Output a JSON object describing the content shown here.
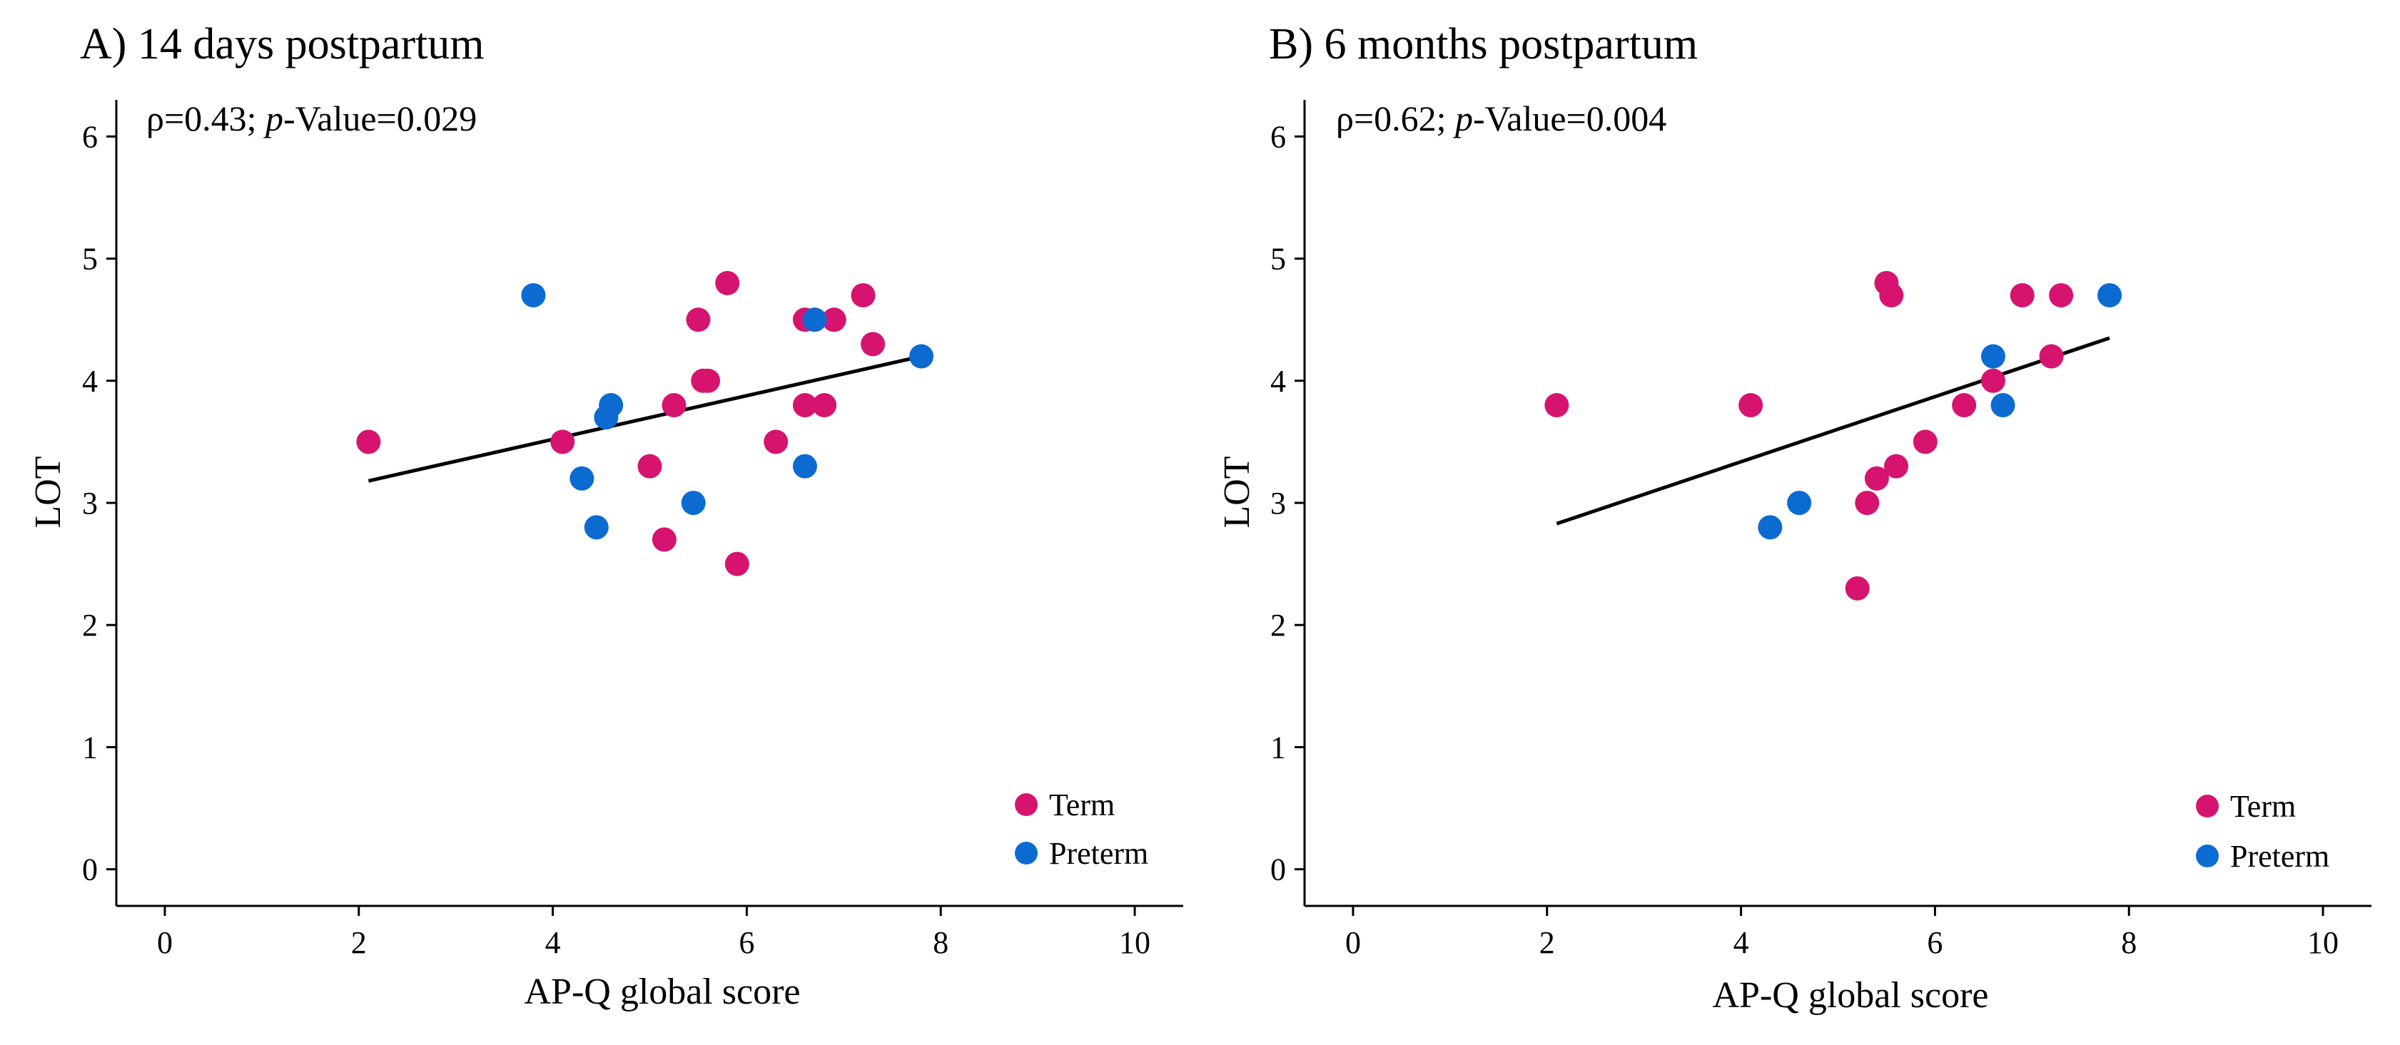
{
  "chart_data": [
    {
      "type": "scatter",
      "title": "A) 14 days postpartum",
      "annotation": {
        "prefix": "ρ=0.43; ",
        "p": "p",
        "mid": "-Value",
        "value": "=0.029"
      },
      "xlabel": "AP-Q global score",
      "ylabel": "LOT",
      "xlim": [
        -0.5,
        10.5
      ],
      "ylim": [
        -0.3,
        6.3
      ],
      "xticks": [
        0,
        2,
        4,
        6,
        8,
        10
      ],
      "yticks": [
        0,
        1,
        2,
        3,
        4,
        5,
        6
      ],
      "grid": false,
      "legend_position": "bottom-right",
      "fit_line": {
        "x": [
          2.1,
          7.8
        ],
        "y": [
          3.18,
          4.2
        ]
      },
      "series": [
        {
          "name": "Term",
          "color": "#D6136F",
          "points": [
            {
              "x": 2.1,
              "y": 3.5
            },
            {
              "x": 4.1,
              "y": 3.5
            },
            {
              "x": 5.0,
              "y": 3.3
            },
            {
              "x": 5.15,
              "y": 2.7
            },
            {
              "x": 5.25,
              "y": 3.8
            },
            {
              "x": 5.5,
              "y": 4.5
            },
            {
              "x": 5.55,
              "y": 4.0
            },
            {
              "x": 5.6,
              "y": 4.0
            },
            {
              "x": 5.8,
              "y": 4.8
            },
            {
              "x": 5.9,
              "y": 2.5
            },
            {
              "x": 6.3,
              "y": 3.5
            },
            {
              "x": 6.6,
              "y": 3.8
            },
            {
              "x": 6.6,
              "y": 4.5
            },
            {
              "x": 6.8,
              "y": 3.8
            },
            {
              "x": 6.9,
              "y": 4.5
            },
            {
              "x": 7.2,
              "y": 4.7
            },
            {
              "x": 7.3,
              "y": 4.3
            }
          ]
        },
        {
          "name": "Preterm",
          "color": "#0B6BD1",
          "points": [
            {
              "x": 3.8,
              "y": 4.7
            },
            {
              "x": 4.3,
              "y": 3.2
            },
            {
              "x": 4.45,
              "y": 2.8
            },
            {
              "x": 4.55,
              "y": 3.7
            },
            {
              "x": 4.6,
              "y": 3.8
            },
            {
              "x": 5.45,
              "y": 3.0
            },
            {
              "x": 6.6,
              "y": 3.3
            },
            {
              "x": 6.7,
              "y": 4.5
            },
            {
              "x": 7.8,
              "y": 4.2
            }
          ]
        }
      ]
    },
    {
      "type": "scatter",
      "title": "B) 6 months postpartum",
      "annotation": {
        "prefix": "ρ=0.62; ",
        "p": "p",
        "mid": "-Value",
        "value": "=0.004"
      },
      "xlabel": "AP-Q global score",
      "ylabel": "LOT",
      "xlim": [
        -0.5,
        10.5
      ],
      "ylim": [
        -0.3,
        6.3
      ],
      "xticks": [
        0,
        2,
        4,
        6,
        8,
        10
      ],
      "yticks": [
        0,
        1,
        2,
        3,
        4,
        5,
        6
      ],
      "grid": false,
      "legend_position": "bottom-right",
      "fit_line": {
        "x": [
          2.1,
          7.8
        ],
        "y": [
          2.83,
          4.35
        ]
      },
      "series": [
        {
          "name": "Term",
          "color": "#D6136F",
          "points": [
            {
              "x": 2.1,
              "y": 3.8
            },
            {
              "x": 4.1,
              "y": 3.8
            },
            {
              "x": 5.2,
              "y": 2.3
            },
            {
              "x": 5.3,
              "y": 3.0
            },
            {
              "x": 5.4,
              "y": 3.2
            },
            {
              "x": 5.5,
              "y": 4.8
            },
            {
              "x": 5.55,
              "y": 4.7
            },
            {
              "x": 5.6,
              "y": 3.3
            },
            {
              "x": 5.9,
              "y": 3.5
            },
            {
              "x": 6.3,
              "y": 3.8
            },
            {
              "x": 6.6,
              "y": 4.0
            },
            {
              "x": 6.9,
              "y": 4.7
            },
            {
              "x": 7.2,
              "y": 4.2
            },
            {
              "x": 7.3,
              "y": 4.7
            }
          ]
        },
        {
          "name": "Preterm",
          "color": "#0B6BD1",
          "points": [
            {
              "x": 4.3,
              "y": 2.8
            },
            {
              "x": 4.6,
              "y": 3.0
            },
            {
              "x": 6.6,
              "y": 4.2
            },
            {
              "x": 6.7,
              "y": 3.8
            },
            {
              "x": 7.8,
              "y": 4.7
            }
          ]
        }
      ]
    }
  ]
}
